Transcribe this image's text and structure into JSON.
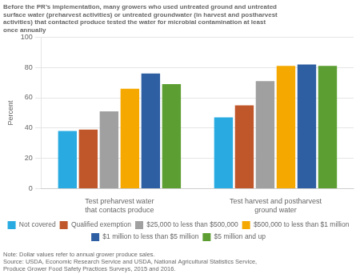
{
  "chart_data": {
    "type": "bar",
    "title": [
      "Before the PR’s implementation, many growers who used untreated ground and untreated",
      "surface water (preharvest activities) or untreated groundwater (in harvest and postharvest",
      "activities) that contacted produce tested the water for microbial contamination at least",
      "once annually"
    ],
    "y_label": "Percent",
    "categories": [
      "Test preharvest water\nthat contacts produce",
      "Test harvest and postharvest\nground water"
    ],
    "series": [
      {
        "name": "Not covered",
        "color": "#29ABE2",
        "values": [
          38,
          47
        ]
      },
      {
        "name": "Qualified exemption",
        "color": "#C0572B",
        "values": [
          39,
          55
        ]
      },
      {
        "name": "$25,000 to less than $500,000",
        "color": "#A0A0A0",
        "values": [
          51,
          71
        ]
      },
      {
        "name": "$500,000 to less than $1 million",
        "color": "#F5A800",
        "values": [
          66,
          81
        ]
      },
      {
        "name": "$1 million to less than $5 million",
        "color": "#2E5FA3",
        "values": [
          76,
          82
        ]
      },
      {
        "name": "$5 million and up",
        "color": "#5C9E31",
        "values": [
          69,
          81
        ]
      }
    ],
    "ylim": [
      0,
      100
    ],
    "yticks": [
      0,
      20,
      40,
      60,
      80,
      100
    ],
    "grid": true,
    "legend": "bottom",
    "note": [
      "Note: Dollar values refer to annual grower produce sales.",
      "Source: USDA, Economic Research Service and USDA, National Agricultural Statistics Service,",
      "Produce Grower Food Safety Practices Surveys, 2015 and 2016."
    ]
  }
}
